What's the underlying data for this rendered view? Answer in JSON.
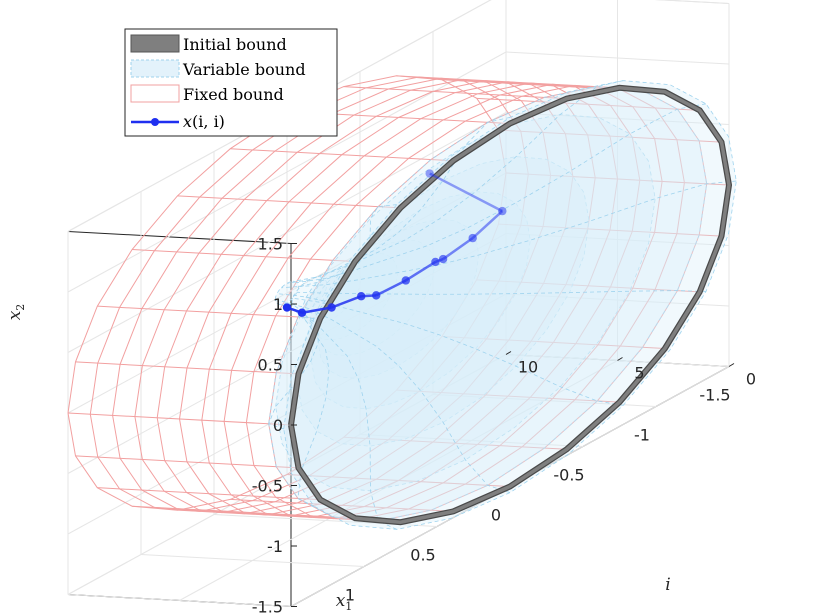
{
  "chart_data": {
    "type": "line",
    "view": "3d",
    "axes": {
      "x1": {
        "label": "x",
        "label_sub": "1",
        "ticks": [
          "1.5",
          "1",
          "0.5",
          "0",
          "-0.5",
          "-1",
          "-1.5"
        ]
      },
      "x2": {
        "label": "x",
        "label_sub": "2",
        "ticks": [
          "1.5",
          "1",
          "0.5",
          "0",
          "-0.5",
          "-1",
          "-1.5"
        ]
      },
      "i": {
        "label": "i",
        "ticks": [
          "0",
          "5",
          "10"
        ]
      }
    },
    "legend": {
      "placement": "top-left",
      "entries": [
        "Initial bound",
        "Variable bound",
        "Fixed bound"
      ],
      "trajectory_label": {
        "prefix": "x",
        "args": "(i, i)"
      }
    },
    "series": [
      {
        "name": "Initial bound",
        "kind": "circle",
        "i": 0,
        "radius": 1.5,
        "color": "#7f7f7f"
      },
      {
        "name": "Variable bound",
        "kind": "tube",
        "color": "#9fd3ee",
        "i": [
          0,
          1,
          2,
          3,
          4,
          5,
          6,
          7,
          8,
          9,
          10
        ],
        "radius": [
          1.55,
          1.5,
          1.3,
          1.0,
          0.75,
          0.55,
          0.4,
          0.3,
          0.2,
          0.12,
          0.08
        ]
      },
      {
        "name": "Fixed bound",
        "kind": "cylinder",
        "color": "#f2a0a0",
        "i_range": [
          0,
          10
        ],
        "radius": 1.5
      },
      {
        "name": "x(i, i)",
        "kind": "trajectory",
        "color": "#1f2ff0",
        "i": [
          0,
          1,
          2,
          3,
          4,
          5,
          6,
          7,
          8,
          9,
          10
        ],
        "x1": [
          0.55,
          -0.1,
          -0.05,
          0.0,
          -0.1,
          -0.05,
          0.0,
          -0.05,
          0.0,
          0.05,
          0.0
        ],
        "x2": [
          1.45,
          0.7,
          0.5,
          0.35,
          0.25,
          0.12,
          0.02,
          -0.03,
          -0.1,
          -0.12,
          -0.12
        ]
      }
    ],
    "xlim": [
      -1.5,
      1.5
    ],
    "ylim": [
      -1.5,
      1.5
    ],
    "ilim": [
      0,
      10
    ],
    "grid": true
  }
}
